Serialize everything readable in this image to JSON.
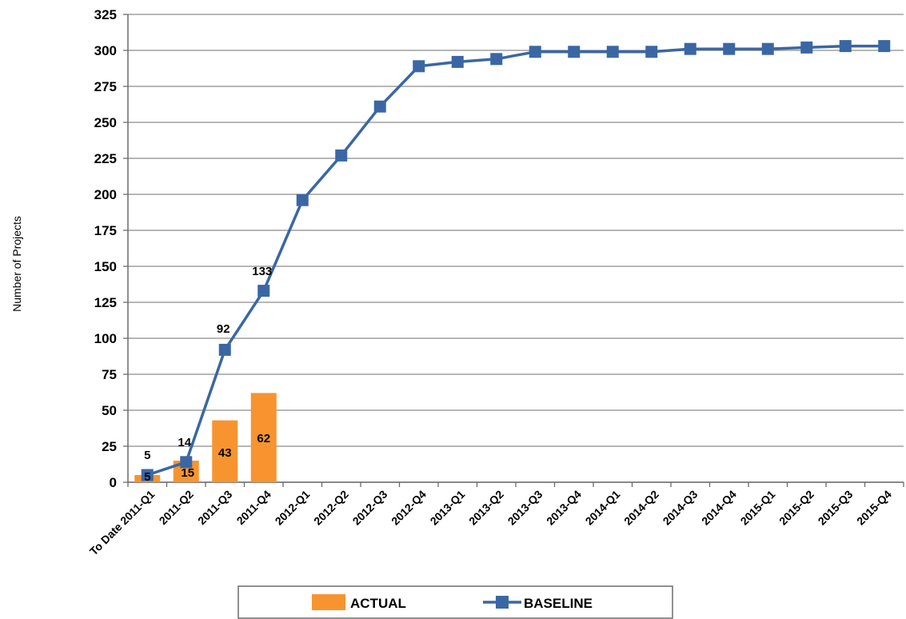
{
  "chart_data": {
    "type": "bar",
    "categories": [
      "To Date 2011-Q1",
      "2011-Q2",
      "2011-Q3",
      "2011-Q4",
      "2012-Q1",
      "2012-Q2",
      "2012-Q3",
      "2012-Q4",
      "2013-Q1",
      "2013-Q2",
      "2013-Q3",
      "2013-Q4",
      "2014-Q1",
      "2014-Q2",
      "2014-Q3",
      "2014-Q4",
      "2015-Q1",
      "2015-Q2",
      "2015-Q3",
      "2015-Q4"
    ],
    "series": [
      {
        "name": "ACTUAL",
        "type": "bar",
        "color": "#F79430",
        "values": [
          5,
          15,
          43,
          62,
          null,
          null,
          null,
          null,
          null,
          null,
          null,
          null,
          null,
          null,
          null,
          null,
          null,
          null,
          null,
          null
        ]
      },
      {
        "name": "BASELINE",
        "type": "line",
        "color": "#3A67A4",
        "marker": "square",
        "values": [
          5,
          14,
          92,
          133,
          196,
          227,
          261,
          289,
          292,
          294,
          299,
          299,
          299,
          299,
          301,
          301,
          301,
          302,
          303,
          303
        ]
      }
    ],
    "data_labels": {
      "ACTUAL": [
        "5",
        "15",
        "43",
        "62"
      ],
      "BASELINE": [
        "5",
        "14",
        "92",
        "133"
      ]
    },
    "title": "",
    "xlabel": "",
    "ylabel": "Number of Projects",
    "ylim": [
      0,
      325
    ],
    "yticks": [
      0,
      25,
      50,
      75,
      100,
      125,
      150,
      175,
      200,
      225,
      250,
      275,
      300,
      325
    ],
    "grid": "horizontal",
    "legend_position": "bottom"
  }
}
